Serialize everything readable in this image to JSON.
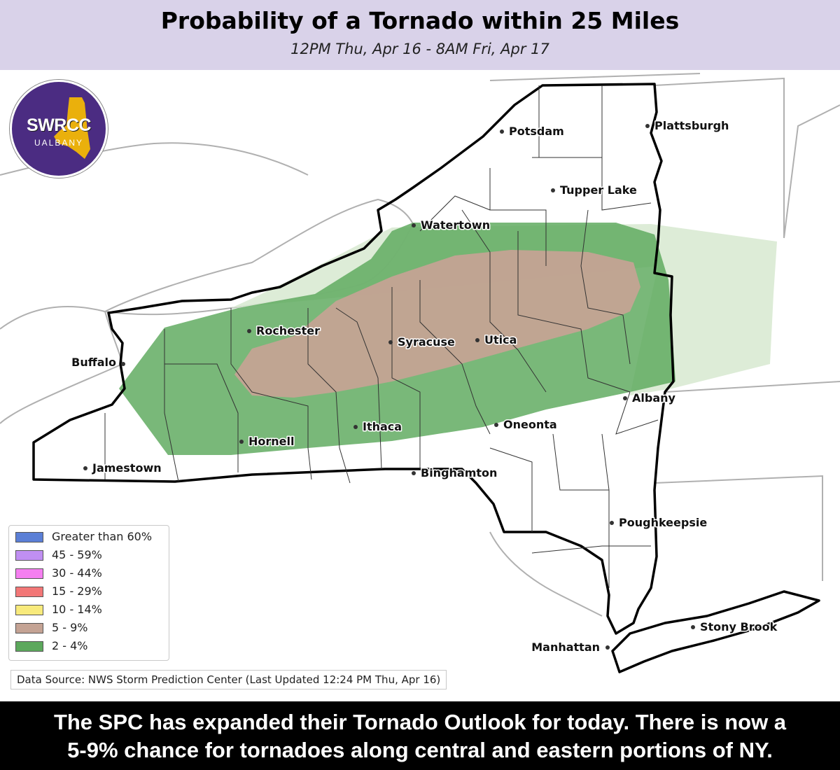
{
  "header": {
    "title": "Probability of a Tornado within 25 Miles",
    "subtitle": "12PM Thu, Apr 16 - 8AM Fri, Apr 17"
  },
  "logo": {
    "main_text": "SWRCC",
    "sub_text": "UALBANY",
    "colors": {
      "background": "#4b2c82",
      "accent": "#f2b705"
    }
  },
  "map": {
    "region": "New York State",
    "colors": {
      "risk_2_4": "#5ca85c",
      "risk_5_9": "#c4a394",
      "risk_2_4_light": "#d9ead3",
      "land": "#ffffff",
      "water": "#ffffff",
      "borders": "#000000",
      "county_lines": "#333333",
      "neighbor_lines": "#b0b0b0"
    },
    "cities": [
      {
        "name": "Potsdam"
      },
      {
        "name": "Plattsburgh"
      },
      {
        "name": "Tupper Lake"
      },
      {
        "name": "Watertown"
      },
      {
        "name": "Rochester"
      },
      {
        "name": "Syracuse"
      },
      {
        "name": "Utica"
      },
      {
        "name": "Buffalo"
      },
      {
        "name": "Albany"
      },
      {
        "name": "Ithaca"
      },
      {
        "name": "Oneonta"
      },
      {
        "name": "Hornell"
      },
      {
        "name": "Jamestown"
      },
      {
        "name": "Binghamton"
      },
      {
        "name": "Poughkeepsie"
      },
      {
        "name": "Stony Brook"
      },
      {
        "name": "Manhattan"
      }
    ]
  },
  "legend": {
    "items": [
      {
        "label": "Greater than 60%",
        "color": "#5b7fd6"
      },
      {
        "label": "45 - 59%",
        "color": "#c08ff2"
      },
      {
        "label": "30 - 44%",
        "color": "#f57ff0"
      },
      {
        "label": "15 - 29%",
        "color": "#f27777"
      },
      {
        "label": "10 - 14%",
        "color": "#f8ea7c"
      },
      {
        "label": "5 - 9%",
        "color": "#c4a394"
      },
      {
        "label": "2 - 4%",
        "color": "#5ca85c"
      }
    ]
  },
  "source": {
    "text": "Data Source: NWS Storm Prediction Center (Last Updated 12:24 PM Thu, Apr 16)"
  },
  "footer": {
    "line1": "The SPC has expanded their Tornado Outlook for today. There is now a",
    "line2": "5-9% chance for tornadoes along central and eastern portions of NY."
  }
}
